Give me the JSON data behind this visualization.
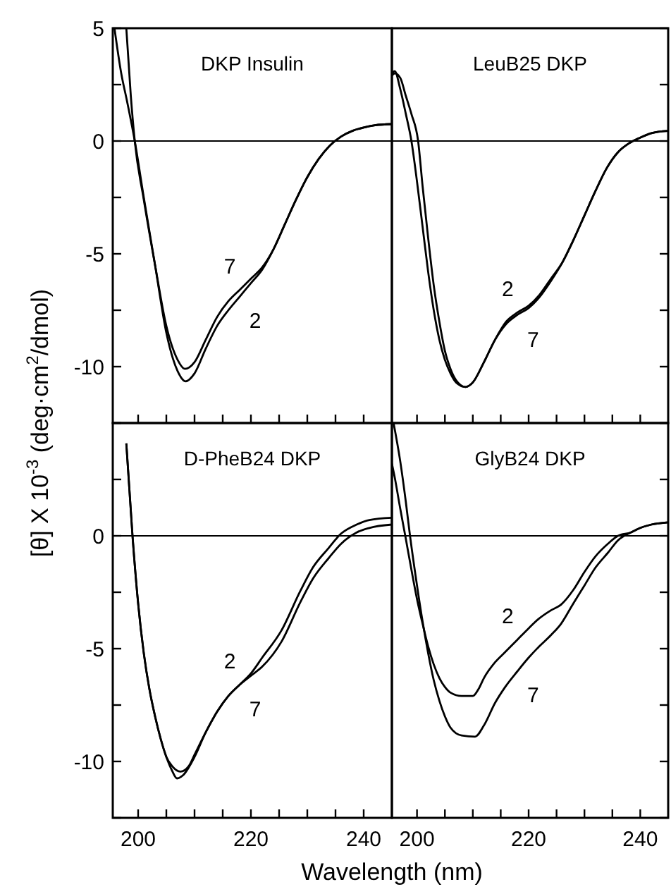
{
  "chart_data": [
    {
      "type": "line",
      "title": "DKP Insulin",
      "ylabel": "[θ] X 10$^{-3}$ (deg·cm$^{2}$/dmol)",
      "xlim": [
        195.5,
        245
      ],
      "ylim": [
        -12.5,
        5
      ],
      "tick_labels": "y",
      "xticks": [
        {
          "value": 200,
          "label": null
        },
        {
          "value": 205,
          "label": null
        },
        {
          "value": 210,
          "label": null
        },
        {
          "value": 215,
          "label": null
        },
        {
          "value": 220,
          "label": null
        },
        {
          "value": 225,
          "label": null
        },
        {
          "value": 230,
          "label": null
        },
        {
          "value": 235,
          "label": null
        },
        {
          "value": 240,
          "label": null
        }
      ],
      "yticks": [
        {
          "value": -12.5,
          "label": null
        },
        -10,
        {
          "value": -7.5,
          "label": null
        },
        -5,
        {
          "value": -2.5,
          "label": null
        },
        0,
        {
          "value": 2.5,
          "label": null
        },
        5
      ],
      "ref_lines": [
        {
          "axis": "y",
          "value": 0,
          "color": "#000000"
        }
      ],
      "series": [
        {
          "name": "2",
          "color": "#000000",
          "x": [
            195.8,
            197,
            198,
            199.4,
            201,
            203,
            205,
            207,
            208.4,
            210,
            212,
            214,
            216,
            218,
            220,
            222,
            224,
            226,
            228,
            230,
            232,
            234,
            236,
            238,
            240,
            242,
            245
          ],
          "values": [
            5,
            3,
            1.8,
            0,
            -2.5,
            -5.5,
            -8.5,
            -10.2,
            -10.65,
            -10.3,
            -9.2,
            -8.2,
            -7.5,
            -6.9,
            -6.3,
            -5.7,
            -4.8,
            -3.7,
            -2.6,
            -1.6,
            -0.8,
            -0.2,
            0.2,
            0.45,
            0.6,
            0.7,
            0.75
          ]
        },
        {
          "name": "7",
          "color": "#000000",
          "x": [
            197.9,
            198.7,
            199.4,
            201,
            203,
            205,
            207,
            208.3,
            210,
            212,
            214,
            216,
            218,
            220,
            222,
            224,
            226,
            228,
            230,
            232,
            234,
            236,
            238,
            240,
            242,
            245
          ],
          "values": [
            5,
            2,
            0,
            -2.6,
            -5.5,
            -8.2,
            -9.7,
            -10.1,
            -9.8,
            -8.8,
            -7.8,
            -7.1,
            -6.6,
            -6.1,
            -5.6,
            -4.8,
            -3.7,
            -2.6,
            -1.6,
            -0.8,
            -0.2,
            0.2,
            0.45,
            0.6,
            0.7,
            0.75
          ]
        }
      ],
      "legend": false
    },
    {
      "type": "line",
      "title": "LeuB25 DKP",
      "xlim": [
        195.5,
        245
      ],
      "ylim": [
        -12.5,
        5
      ],
      "tick_labels": false,
      "xticks": [
        {
          "value": 200,
          "label": null
        },
        {
          "value": 205,
          "label": null
        },
        {
          "value": 210,
          "label": null
        },
        {
          "value": 215,
          "label": null
        },
        {
          "value": 220,
          "label": null
        },
        {
          "value": 225,
          "label": null
        },
        {
          "value": 230,
          "label": null
        },
        {
          "value": 235,
          "label": null
        },
        {
          "value": 240,
          "label": null
        }
      ],
      "yticks": [
        {
          "value": -12.5,
          "label": null
        },
        {
          "value": -10,
          "label": null
        },
        {
          "value": -7.5,
          "label": null
        },
        {
          "value": -5,
          "label": null
        },
        {
          "value": -2.5,
          "label": null
        },
        {
          "value": 0,
          "label": null
        },
        {
          "value": 2.5,
          "label": null
        },
        {
          "value": 5,
          "label": null
        }
      ],
      "ref_lines": [
        {
          "axis": "y",
          "value": 0,
          "color": "#000000"
        }
      ],
      "series": [
        {
          "name": "2",
          "color": "#000000",
          "x": [
            195.5,
            196,
            197,
            198,
            199,
            200,
            201,
            202,
            203,
            204,
            205,
            206,
            207,
            208.7,
            210,
            212,
            214,
            216,
            218,
            220,
            222,
            224,
            226,
            228,
            230,
            232,
            234,
            236,
            238,
            240,
            242,
            245
          ],
          "values": [
            3,
            3.1,
            2.3,
            1.2,
            0,
            -1.8,
            -3.8,
            -5.8,
            -7.5,
            -8.8,
            -9.7,
            -10.3,
            -10.7,
            -10.9,
            -10.7,
            -9.8,
            -8.8,
            -8,
            -7.6,
            -7.3,
            -6.8,
            -6.1,
            -5.4,
            -4.4,
            -3.3,
            -2.2,
            -1.2,
            -0.5,
            -0.1,
            0.15,
            0.35,
            0.45
          ]
        },
        {
          "name": "7",
          "color": "#000000",
          "x": [
            195.5,
            196,
            197,
            198,
            199,
            200.2,
            201,
            202,
            203,
            204,
            205,
            206,
            207,
            208.7,
            210,
            212,
            214,
            216,
            218,
            220,
            222,
            224,
            226,
            228,
            230,
            232,
            234,
            236,
            238,
            240,
            242,
            245
          ],
          "values": [
            2.9,
            3,
            2.8,
            2,
            1.2,
            0,
            -2,
            -4.3,
            -6.4,
            -8,
            -9.3,
            -10.1,
            -10.6,
            -10.9,
            -10.7,
            -9.8,
            -8.8,
            -8.1,
            -7.7,
            -7.4,
            -6.9,
            -6.2,
            -5.4,
            -4.4,
            -3.3,
            -2.2,
            -1.2,
            -0.5,
            -0.1,
            0.15,
            0.35,
            0.45
          ]
        }
      ],
      "legend": false
    },
    {
      "type": "line",
      "title": "D-PheB24 DKP",
      "xlabel": "Wavelength (nm)",
      "xlim": [
        195.5,
        245
      ],
      "ylim": [
        -12.5,
        5
      ],
      "xticks": [
        200,
        {
          "value": 205,
          "label": null
        },
        {
          "value": 210,
          "label": null
        },
        {
          "value": 215,
          "label": null
        },
        220,
        {
          "value": 225,
          "label": null
        },
        {
          "value": 230,
          "label": null
        },
        {
          "value": 235,
          "label": null
        },
        240
      ],
      "yticks": [
        {
          "value": -12.5,
          "label": null
        },
        -10,
        {
          "value": -7.5,
          "label": null
        },
        -5,
        {
          "value": -2.5,
          "label": null
        },
        0,
        {
          "value": 2.5,
          "label": null
        },
        {
          "value": 5,
          "label": null
        }
      ],
      "ref_lines": [
        {
          "axis": "y",
          "value": 0,
          "color": "#000000"
        }
      ],
      "series": [
        {
          "name": "2",
          "color": "#000000",
          "x": [
            197.9,
            199,
            200,
            201,
            202,
            203,
            204,
            205,
            206,
            207.5,
            209,
            210,
            212,
            214,
            216,
            218,
            220,
            222,
            225.4,
            228.75,
            231,
            233.75,
            236,
            238.75,
            241,
            245
          ],
          "values": [
            4.1,
            0,
            -3,
            -5.2,
            -6.8,
            -8,
            -9,
            -9.8,
            -10.2,
            -10.45,
            -10.2,
            -9.7,
            -8.7,
            -7.8,
            -7.1,
            -6.6,
            -6.1,
            -5.4,
            -4.2,
            -2.45,
            -1.4,
            -0.55,
            0.1,
            0.5,
            0.7,
            0.8
          ]
        },
        {
          "name": "7",
          "color": "#000000",
          "x": [
            197.9,
            199,
            200,
            201,
            202,
            203,
            204,
            205,
            206,
            206.9,
            208,
            210,
            212,
            214,
            216,
            218,
            220,
            222,
            225.4,
            228.75,
            231,
            233.75,
            236,
            238.75,
            241,
            245
          ],
          "values": [
            4.1,
            0,
            -3,
            -5.2,
            -6.8,
            -8,
            -9,
            -9.8,
            -10.4,
            -10.75,
            -10.6,
            -9.8,
            -8.7,
            -7.8,
            -7.1,
            -6.6,
            -6.2,
            -5.8,
            -4.7,
            -2.95,
            -1.9,
            -1,
            -0.35,
            0.15,
            0.35,
            0.5
          ]
        }
      ],
      "legend": false
    },
    {
      "type": "line",
      "title": "GlyB24 DKP",
      "xlim": [
        195.5,
        245
      ],
      "ylim": [
        -12.5,
        5
      ],
      "tick_labels": "x",
      "xticks": [
        200,
        {
          "value": 205,
          "label": null
        },
        {
          "value": 210,
          "label": null
        },
        {
          "value": 215,
          "label": null
        },
        220,
        {
          "value": 225,
          "label": null
        },
        {
          "value": 230,
          "label": null
        },
        {
          "value": 235,
          "label": null
        },
        240
      ],
      "yticks": [
        {
          "value": -12.5,
          "label": null
        },
        {
          "value": -10,
          "label": null
        },
        {
          "value": -7.5,
          "label": null
        },
        {
          "value": -5,
          "label": null
        },
        {
          "value": -2.5,
          "label": null
        },
        {
          "value": 0,
          "label": null
        },
        {
          "value": 2.5,
          "label": null
        },
        {
          "value": 5,
          "label": null
        }
      ],
      "ref_lines": [
        {
          "axis": "y",
          "value": 0,
          "color": "#000000"
        }
      ],
      "series": [
        {
          "name": "2",
          "color": "#000000",
          "x": [
            195.5,
            196,
            197,
            197.9,
            199,
            200,
            201,
            202,
            203,
            204,
            205,
            206,
            208,
            210,
            211,
            212,
            214,
            215.8,
            218,
            220,
            221.7,
            224,
            225.8,
            228,
            230,
            232,
            234.2,
            236,
            238.3,
            240,
            242,
            245
          ],
          "values": [
            3.2,
            2.6,
            1.2,
            0,
            -1.5,
            -2.8,
            -3.9,
            -4.9,
            -5.7,
            -6.3,
            -6.7,
            -6.95,
            -7.1,
            -7.1,
            -6.8,
            -6.3,
            -5.6,
            -5.15,
            -4.6,
            -4.1,
            -3.7,
            -3.3,
            -3.05,
            -2.4,
            -1.6,
            -0.9,
            -0.35,
            0,
            0.15,
            0.35,
            0.5,
            0.6
          ]
        },
        {
          "name": "7",
          "color": "#000000",
          "x": [
            195.8,
            197,
            198,
            198.75,
            200,
            201,
            202,
            203,
            204,
            205,
            206,
            208,
            210.4,
            212,
            214,
            215.8,
            218,
            220,
            221.7,
            224,
            225.8,
            228,
            230,
            232,
            234.2,
            236,
            238.3,
            240,
            242,
            245
          ],
          "values": [
            5,
            3.3,
            1.5,
            0,
            -2.2,
            -3.8,
            -5.2,
            -6.4,
            -7.3,
            -8,
            -8.5,
            -8.85,
            -8.9,
            -8.4,
            -7.4,
            -6.7,
            -6,
            -5.4,
            -4.95,
            -4.4,
            -3.9,
            -3,
            -2.2,
            -1.4,
            -0.75,
            -0.2,
            0.15,
            0.35,
            0.5,
            0.6
          ]
        }
      ],
      "legend": false
    }
  ]
}
